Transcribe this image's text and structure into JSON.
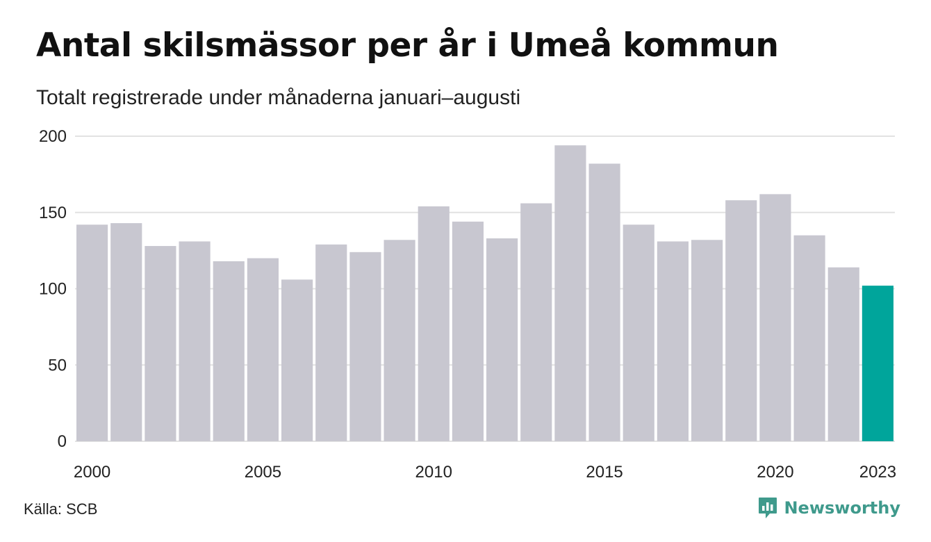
{
  "title": "Antal skilsmässor per år i Umeå kommun",
  "subtitle": "Totalt registrerade under månaderna januari–augusti",
  "source": "Källa: SCB",
  "brand": {
    "name": "Newsworthy",
    "icon": "newsworthy-logo-icon",
    "color": "#3f9a8c"
  },
  "colors": {
    "bar": "#c8c7d0",
    "highlight": "#00a59b",
    "grid": "#e2e2e2"
  },
  "chart_data": {
    "type": "bar",
    "categories": [
      "2000",
      "2001",
      "2002",
      "2003",
      "2004",
      "2005",
      "2006",
      "2007",
      "2008",
      "2009",
      "2010",
      "2011",
      "2012",
      "2013",
      "2014",
      "2015",
      "2016",
      "2017",
      "2018",
      "2019",
      "2020",
      "2021",
      "2022",
      "2023"
    ],
    "values": [
      142,
      143,
      128,
      131,
      118,
      120,
      106,
      129,
      124,
      132,
      154,
      144,
      133,
      156,
      194,
      182,
      142,
      131,
      132,
      158,
      162,
      135,
      114,
      102
    ],
    "highlight_category": "2023",
    "x_tick_labels": [
      "2000",
      "2005",
      "2010",
      "2015",
      "2020",
      "2023"
    ],
    "y_ticks": [
      0,
      50,
      100,
      150,
      200
    ],
    "ylim": [
      0,
      200
    ],
    "title": "Antal skilsmässor per år i Umeå kommun",
    "subtitle": "Totalt registrerade under månaderna januari–augusti",
    "grid": true,
    "legend": "none"
  }
}
